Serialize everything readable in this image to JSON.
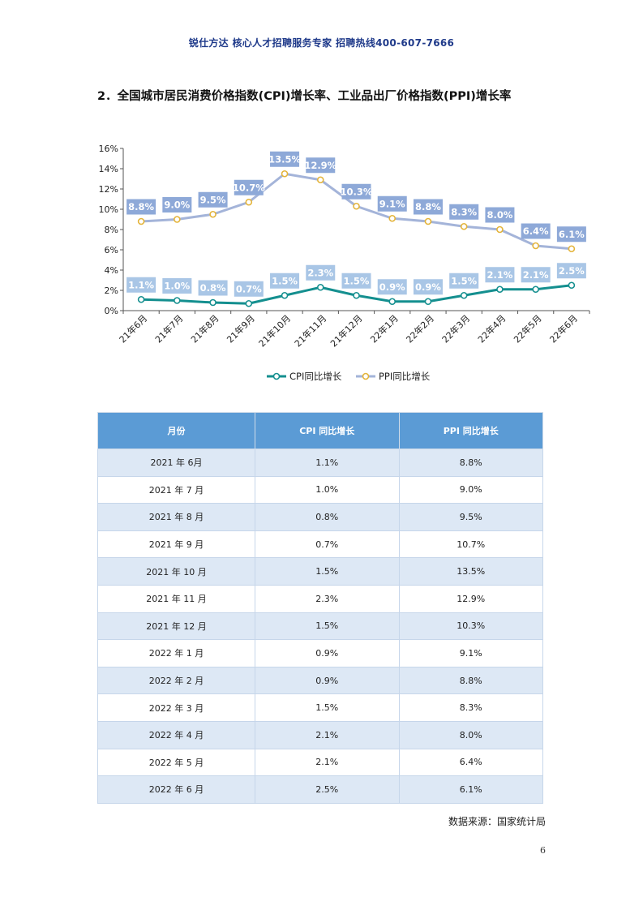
{
  "header": {
    "text": "锐仕方达  核心人才招聘服务专家  招聘热线400-607-7666"
  },
  "section_title": "2．全国城市居民消费价格指数(CPI)增长率、工业品出厂价格指数(PPI)增长率",
  "chart_data": {
    "type": "line",
    "categories": [
      "21年6月",
      "21年7月",
      "21年8月",
      "21年9月",
      "21年10月",
      "21年11月",
      "21年12月",
      "22年1月",
      "22年2月",
      "22年3月",
      "22年4月",
      "22年5月",
      "22年6月"
    ],
    "series": [
      {
        "name": "CPI同比增长",
        "color": "#148f8f",
        "marker_fill": "#ffffff",
        "values": [
          1.1,
          1.0,
          0.8,
          0.7,
          1.5,
          2.3,
          1.5,
          0.9,
          0.9,
          1.5,
          2.1,
          2.1,
          2.5
        ],
        "labels": [
          "1.1%",
          "1.0%",
          "0.8%",
          "0.7%",
          "1.5%",
          "2.3%",
          "1.5%",
          "0.9%",
          "0.9%",
          "1.5%",
          "2.1%",
          "2.1%",
          "2.5%"
        ],
        "label_bg": "#a9c6e6"
      },
      {
        "name": "PPI同比增长",
        "color": "#a4b4d9",
        "marker_stroke": "#e4b43a",
        "values": [
          8.8,
          9.0,
          9.5,
          10.7,
          13.5,
          12.9,
          10.3,
          9.1,
          8.8,
          8.3,
          8.0,
          6.4,
          6.1
        ],
        "labels": [
          "8.8%",
          "9.0%",
          "9.5%",
          "10.7%",
          "13.5%",
          "12.9%",
          "10.3%",
          "9.1%",
          "8.8%",
          "8.3%",
          "8.0%",
          "6.4%",
          "6.1%"
        ],
        "label_bg": "#8ea9d8"
      }
    ],
    "ylim": [
      0,
      16
    ],
    "yticks": [
      0,
      2,
      4,
      6,
      8,
      10,
      12,
      14,
      16
    ],
    "ytick_labels": [
      "0%",
      "2%",
      "4%",
      "6%",
      "8%",
      "10%",
      "12%",
      "14%",
      "16%"
    ],
    "grid": false,
    "legend_position": "bottom"
  },
  "table": {
    "headers": [
      "月份",
      "CPI 同比增长",
      "PPI 同比增长"
    ],
    "rows": [
      [
        "2021 年 6月",
        "1.1%",
        "8.8%"
      ],
      [
        "2021 年 7 月",
        "1.0%",
        "9.0%"
      ],
      [
        "2021 年 8 月",
        "0.8%",
        "9.5%"
      ],
      [
        "2021 年 9 月",
        "0.7%",
        "10.7%"
      ],
      [
        "2021 年 10 月",
        "1.5%",
        "13.5%"
      ],
      [
        "2021 年 11 月",
        "2.3%",
        "12.9%"
      ],
      [
        "2021 年 12 月",
        "1.5%",
        "10.3%"
      ],
      [
        "2022 年 1 月",
        "0.9%",
        "9.1%"
      ],
      [
        "2022 年 2 月",
        "0.9%",
        "8.8%"
      ],
      [
        "2022 年 3 月",
        "1.5%",
        "8.3%"
      ],
      [
        "2022 年 4 月",
        "2.1%",
        "8.0%"
      ],
      [
        "2022 年 5 月",
        "2.1%",
        "6.4%"
      ],
      [
        "2022 年 6 月",
        "2.5%",
        "6.1%"
      ]
    ]
  },
  "source": "数据来源：国家统计局",
  "page_number": "6"
}
